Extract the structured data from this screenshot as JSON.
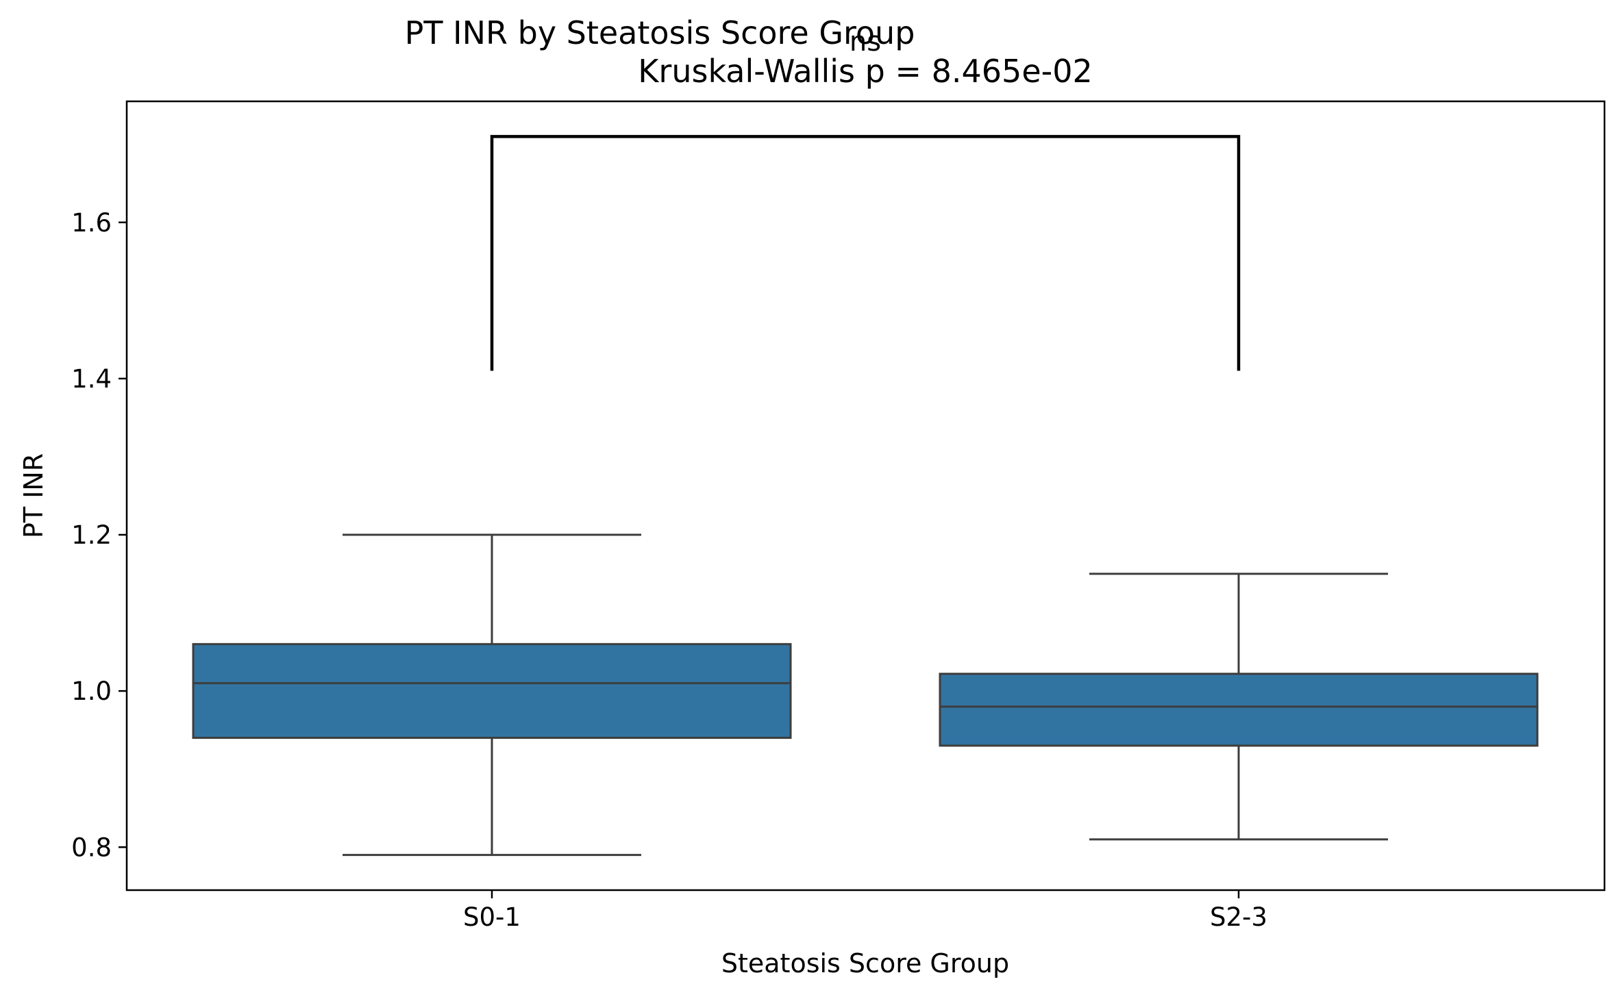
{
  "chart_data": {
    "type": "box",
    "title": "PT INR by Steatosis Score Group",
    "subtitle": "Kruskal-Wallis p = 8.465e-02",
    "xlabel": "Steatosis Score Group",
    "ylabel": "PT INR",
    "ylim": [
      0.745,
      1.755
    ],
    "yticks": [
      0.8,
      1.0,
      1.2,
      1.4,
      1.6
    ],
    "ytick_labels": [
      "0.8",
      "1.0",
      "1.2",
      "1.4",
      "1.6"
    ],
    "categories": [
      "S0-1",
      "S2-3"
    ],
    "boxes": [
      {
        "category": "S0-1",
        "whisker_low": 0.79,
        "q1": 0.94,
        "median": 1.01,
        "q3": 1.06,
        "whisker_high": 1.2
      },
      {
        "category": "S2-3",
        "whisker_low": 0.81,
        "q1": 0.93,
        "median": 0.98,
        "q3": 1.022,
        "whisker_high": 1.15
      }
    ],
    "box_color": "#3274a1",
    "line_color": "#3d3d3d",
    "significance": {
      "label": "ns",
      "from": "S0-1",
      "to": "S2-3",
      "y_low": 1.41,
      "y_high": 1.71
    },
    "grid": false,
    "legend": "none"
  }
}
